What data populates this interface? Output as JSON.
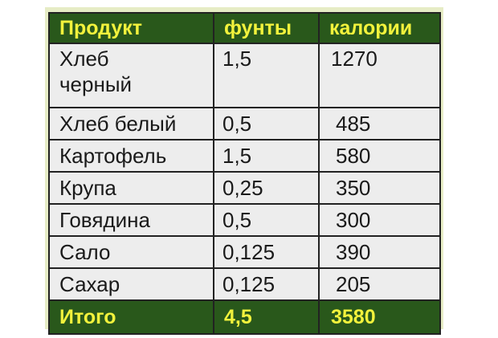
{
  "colors": {
    "header_bg": "#29581b",
    "header_text": "#f2f23c",
    "cell_bg": "#ededed",
    "frame_bg": "#e6ecc5"
  },
  "table": {
    "headers": [
      "Продукт",
      "фунты",
      "калории"
    ],
    "rows": [
      {
        "product": "Хлеб\nчерный",
        "pounds": "1,5",
        "calories": "1270"
      },
      {
        "product": "Хлеб белый",
        "pounds": "0,5",
        "calories": "485"
      },
      {
        "product": "Картофель",
        "pounds": "1,5",
        "calories": "580"
      },
      {
        "product": "Крупа",
        "pounds": "0,25",
        "calories": "350"
      },
      {
        "product": "Говядина",
        "pounds": "0,5",
        "calories": "300"
      },
      {
        "product": "Сало",
        "pounds": "0,125",
        "calories": "390"
      },
      {
        "product": "Сахар",
        "pounds": "0,125",
        "calories": "205"
      }
    ],
    "total": {
      "label": "Итого",
      "pounds": "4,5",
      "calories": "3580"
    }
  }
}
